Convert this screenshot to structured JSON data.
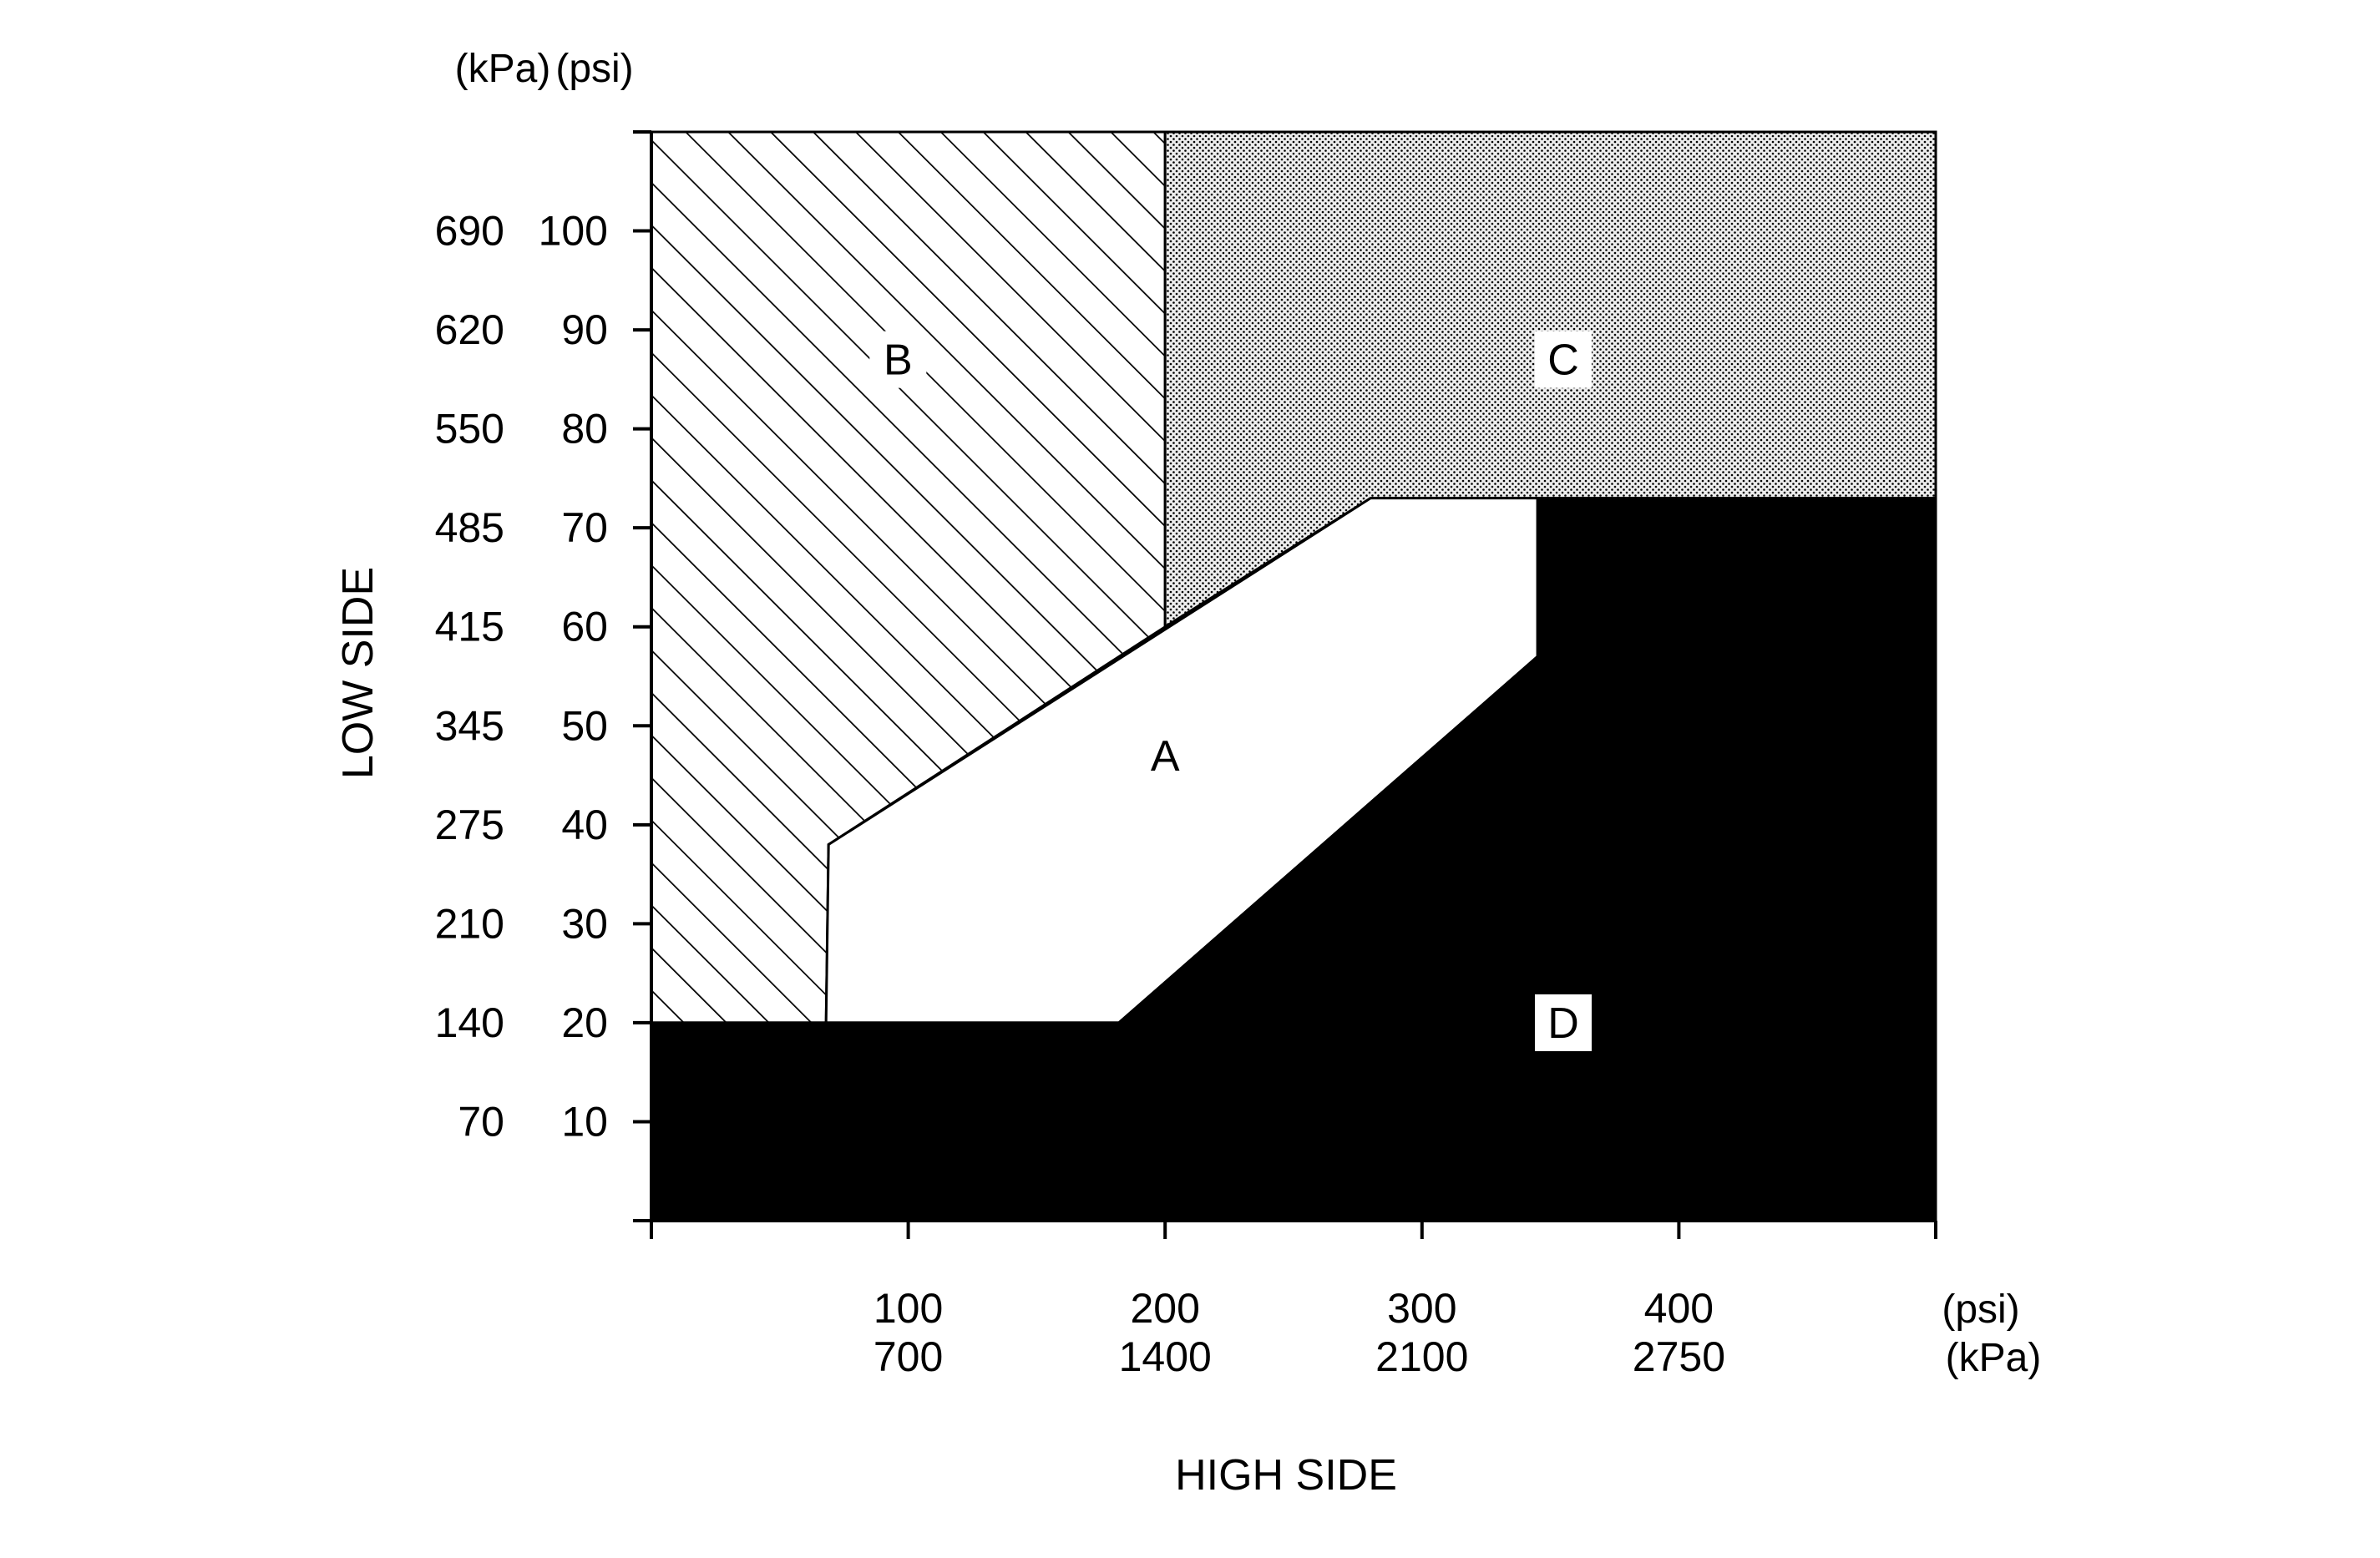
{
  "chart_data": {
    "type": "area",
    "title": "",
    "xlabel": "HIGH SIDE",
    "ylabel": "LOW SIDE",
    "x_units": {
      "primary": "(psi)",
      "secondary": "(kPa)"
    },
    "y_units": {
      "primary": "(psi)",
      "secondary": "(kPa)"
    },
    "xlim": [
      0,
      500
    ],
    "ylim": [
      0,
      110
    ],
    "x_ticks": [
      {
        "psi": 100,
        "psi_label": "100",
        "kpa_label": "700"
      },
      {
        "psi": 200,
        "psi_label": "200",
        "kpa_label": "1400"
      },
      {
        "psi": 300,
        "psi_label": "300",
        "kpa_label": "2100"
      },
      {
        "psi": 400,
        "psi_label": "400",
        "kpa_label": "2750"
      }
    ],
    "y_ticks": [
      {
        "psi": 10,
        "psi_label": "10",
        "kpa_label": "70"
      },
      {
        "psi": 20,
        "psi_label": "20",
        "kpa_label": "140"
      },
      {
        "psi": 30,
        "psi_label": "30",
        "kpa_label": "210"
      },
      {
        "psi": 40,
        "psi_label": "40",
        "kpa_label": "275"
      },
      {
        "psi": 50,
        "psi_label": "50",
        "kpa_label": "345"
      },
      {
        "psi": 60,
        "psi_label": "60",
        "kpa_label": "415"
      },
      {
        "psi": 70,
        "psi_label": "70",
        "kpa_label": "485"
      },
      {
        "psi": 80,
        "psi_label": "80",
        "kpa_label": "550"
      },
      {
        "psi": 90,
        "psi_label": "90",
        "kpa_label": "620"
      },
      {
        "psi": 100,
        "psi_label": "100",
        "kpa_label": "690"
      }
    ],
    "grid": false,
    "regions": [
      {
        "label": "B",
        "fill": "hatched",
        "label_at": [
          96,
          87
        ],
        "polygon": [
          [
            0,
            20
          ],
          [
            68,
            20
          ],
          [
            69,
            38
          ],
          [
            200,
            60
          ],
          [
            200,
            110
          ],
          [
            0,
            110
          ]
        ]
      },
      {
        "label": "C",
        "fill": "dotted",
        "label_at": [
          355,
          87
        ],
        "polygon": [
          [
            200,
            60
          ],
          [
            280,
            73
          ],
          [
            500,
            73
          ],
          [
            500,
            110
          ],
          [
            200,
            110
          ]
        ]
      },
      {
        "label": "A",
        "fill": "white",
        "label_at": [
          200,
          47
        ],
        "polygon": [
          [
            68,
            20
          ],
          [
            182,
            20
          ],
          [
            345,
            57
          ],
          [
            345,
            73
          ],
          [
            280,
            73
          ],
          [
            69,
            38
          ]
        ]
      },
      {
        "label": "D",
        "fill": "black",
        "label_at": [
          355,
          20
        ],
        "polygon": [
          [
            0,
            0
          ],
          [
            500,
            0
          ],
          [
            500,
            73
          ],
          [
            345,
            73
          ],
          [
            345,
            57
          ],
          [
            182,
            20
          ],
          [
            0,
            20
          ]
        ]
      }
    ]
  },
  "colors": {
    "ink": "#000000",
    "paper": "#ffffff",
    "dotted_fill": "#d9d9d9"
  }
}
